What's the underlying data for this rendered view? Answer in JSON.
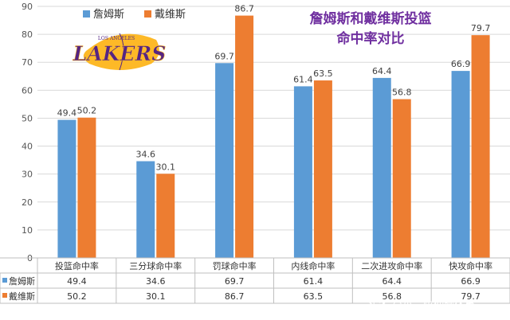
{
  "chart_data": {
    "type": "bar",
    "title": [
      "詹姆斯和戴维斯投篮",
      "命中率对比"
    ],
    "categories": [
      "投篮命中率",
      "三分球命中率",
      "罚球命中率",
      "内线命中率",
      "二次进攻命中率",
      "快攻命中率"
    ],
    "series": [
      {
        "name": "詹姆斯",
        "color": "#5b9bd5",
        "values": [
          49.4,
          34.6,
          69.7,
          61.4,
          64.4,
          66.9
        ]
      },
      {
        "name": "戴维斯",
        "color": "#ed7d31",
        "values": [
          50.2,
          30.1,
          86.7,
          63.5,
          56.8,
          79.7
        ]
      }
    ],
    "ylim": [
      0,
      90
    ],
    "yticks": [
      0,
      10,
      20,
      30,
      40,
      50,
      60,
      70,
      80,
      90
    ],
    "grid": true,
    "legend_position": "top-left",
    "data_table": true
  },
  "logo": {
    "top": "LOS ANGELES",
    "main": "LAKERS",
    "colors": {
      "purple": "#552583",
      "gold": "#fdb927"
    }
  },
  "watermark": "头条 @小二陪你聊体育"
}
